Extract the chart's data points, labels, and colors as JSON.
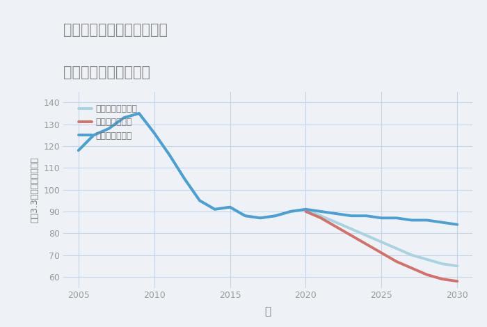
{
  "title_line1": "兵庫県豊岡市出石町片間の",
  "title_line2": "中古戸建ての価格推移",
  "xlabel": "年",
  "ylabel": "平（3.3㎡）単価（万円）",
  "background_color": "#eef2f7",
  "plot_background": "#eef2f7",
  "ylim": [
    55,
    145
  ],
  "yticks": [
    60,
    70,
    80,
    90,
    100,
    110,
    120,
    130,
    140
  ],
  "xlim": [
    2004.0,
    2031.0
  ],
  "xticks": [
    2005,
    2010,
    2015,
    2020,
    2025,
    2030
  ],
  "good_scenario": {
    "label": "グッドシナリオ",
    "color": "#4a9fd4",
    "linewidth": 2.8,
    "x": [
      2005,
      2006,
      2007,
      2008,
      2009,
      2010,
      2011,
      2012,
      2013,
      2014,
      2015,
      2016,
      2017,
      2018,
      2019,
      2020,
      2021,
      2022,
      2023,
      2024,
      2025,
      2026,
      2027,
      2028,
      2029,
      2030
    ],
    "y": [
      118,
      125,
      128,
      133,
      135,
      126,
      116,
      105,
      95,
      91,
      92,
      88,
      87,
      88,
      90,
      91,
      90,
      89,
      88,
      88,
      87,
      87,
      86,
      86,
      85,
      84
    ]
  },
  "bad_scenario": {
    "label": "バッドシナリオ",
    "color": "#d4706a",
    "linewidth": 2.8,
    "x": [
      2020,
      2021,
      2022,
      2023,
      2024,
      2025,
      2026,
      2027,
      2028,
      2029,
      2030
    ],
    "y": [
      90,
      87,
      83,
      79,
      75,
      71,
      67,
      64,
      61,
      59,
      58
    ]
  },
  "normal_scenario": {
    "label": "ノーマルシナリオ",
    "color": "#a8d4e0",
    "linewidth": 2.8,
    "x": [
      2005,
      2006,
      2007,
      2008,
      2009,
      2010,
      2011,
      2012,
      2013,
      2014,
      2015,
      2016,
      2017,
      2018,
      2019,
      2020,
      2021,
      2022,
      2023,
      2024,
      2025,
      2026,
      2027,
      2028,
      2029,
      2030
    ],
    "y": [
      118,
      125,
      128,
      133,
      135,
      126,
      116,
      105,
      95,
      91,
      92,
      88,
      87,
      88,
      90,
      91,
      88,
      85,
      82,
      79,
      76,
      73,
      70,
      68,
      66,
      65
    ]
  }
}
